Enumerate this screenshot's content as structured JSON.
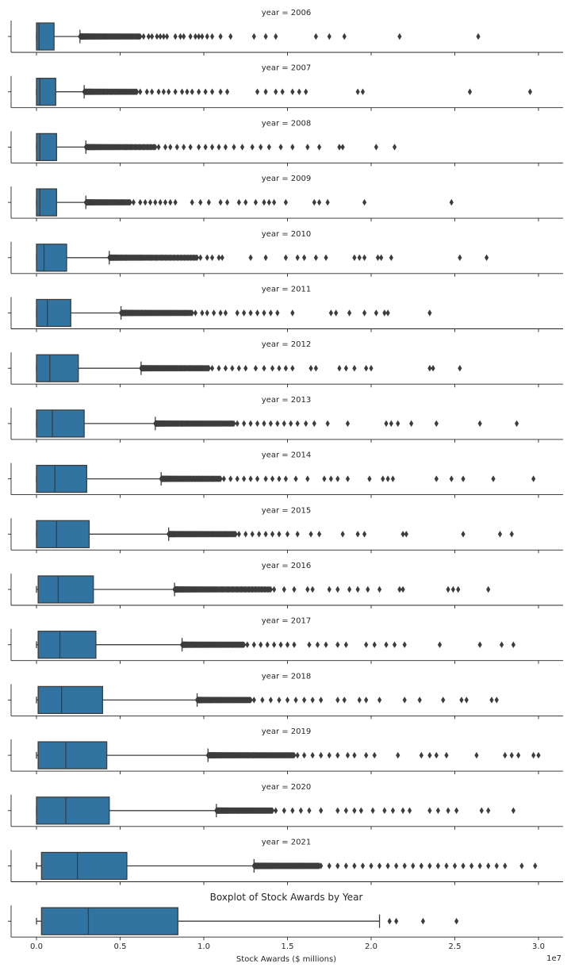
{
  "chart_data": {
    "type": "boxplot",
    "title": "Boxplot of Stock Awards by Year",
    "xlabel": "Stock Awards ($ millions)",
    "x_offset_label": "1e7",
    "xlim": [
      -1500000,
      31500000
    ],
    "x_ticks": [
      0,
      5000000,
      10000000,
      15000000,
      20000000,
      25000000,
      30000000
    ],
    "x_tick_labels": [
      "0.0",
      "0.5",
      "1.0",
      "1.5",
      "2.0",
      "2.5",
      "3.0"
    ],
    "facet_label_prefix": "year = ",
    "box_color": "#3274a1",
    "line_color": "#3d3d3d",
    "panels": [
      {
        "label": "year = 2006",
        "min": 0,
        "q1": 0,
        "median": 150000,
        "q3": 1050000,
        "whisker_high": 2600000,
        "outliers": [
          6400000,
          6700000,
          6900000,
          7200000,
          7400000,
          7600000,
          7800000,
          8300000,
          8600000,
          8800000,
          9200000,
          9500000,
          9700000,
          9900000,
          10200000,
          10500000,
          11000000,
          11600000,
          13000000,
          13700000,
          14300000,
          16700000,
          17500000,
          18400000,
          21700000,
          26400000
        ],
        "outlier_cluster": [
          2600000,
          6200000,
          90
        ]
      },
      {
        "label": "year = 2007",
        "min": 0,
        "q1": 0,
        "median": 200000,
        "q3": 1150000,
        "whisker_high": 2850000,
        "outliers": [
          6200000,
          6600000,
          6900000,
          7300000,
          7600000,
          7900000,
          8300000,
          8700000,
          9000000,
          9300000,
          9700000,
          10100000,
          10500000,
          11000000,
          11400000,
          13200000,
          13700000,
          14300000,
          14700000,
          15300000,
          15700000,
          16100000,
          19200000,
          19500000,
          25900000,
          29500000
        ],
        "outlier_cluster": [
          2850000,
          6000000,
          90
        ]
      },
      {
        "label": "year = 2008",
        "min": 0,
        "q1": 0,
        "median": 200000,
        "q3": 1200000,
        "whisker_high": 2950000,
        "outliers": [
          7300000,
          7700000,
          8000000,
          8400000,
          8800000,
          9200000,
          9700000,
          10100000,
          10500000,
          10900000,
          11300000,
          11800000,
          12300000,
          12900000,
          13400000,
          13900000,
          14600000,
          15300000,
          16200000,
          16900000,
          18100000,
          18300000,
          20300000,
          21400000
        ],
        "outlier_cluster": [
          2950000,
          7100000,
          90
        ]
      },
      {
        "label": "year = 2009",
        "min": 0,
        "q1": 0,
        "median": 200000,
        "q3": 1200000,
        "whisker_high": 2950000,
        "outliers": [
          5800000,
          6200000,
          6500000,
          6800000,
          7100000,
          7400000,
          7700000,
          8000000,
          8300000,
          9300000,
          9800000,
          10300000,
          11000000,
          11400000,
          12100000,
          12500000,
          13100000,
          13600000,
          13900000,
          14200000,
          14900000,
          16600000,
          16900000,
          17400000,
          19600000,
          24800000
        ],
        "outlier_cluster": [
          2950000,
          5600000,
          80
        ]
      },
      {
        "label": "year = 2010",
        "min": 0,
        "q1": 0,
        "median": 450000,
        "q3": 1800000,
        "whisker_high": 4350000,
        "outliers": [
          9800000,
          10200000,
          10500000,
          10900000,
          11100000,
          12800000,
          13700000,
          14900000,
          15600000,
          16000000,
          16700000,
          17300000,
          19000000,
          19300000,
          19600000,
          20400000,
          20600000,
          21200000,
          25300000,
          26900000
        ],
        "outlier_cluster": [
          4350000,
          9600000,
          110
        ]
      },
      {
        "label": "year = 2011",
        "min": 0,
        "q1": 0,
        "median": 650000,
        "q3": 2050000,
        "whisker_high": 5050000,
        "outliers": [
          9500000,
          9900000,
          10200000,
          10600000,
          11000000,
          11300000,
          12000000,
          12400000,
          12800000,
          13200000,
          13600000,
          14000000,
          14400000,
          15300000,
          17600000,
          17900000,
          18700000,
          19600000,
          20300000,
          20800000,
          21000000,
          23500000
        ],
        "outlier_cluster": [
          5050000,
          9300000,
          110
        ]
      },
      {
        "label": "year = 2012",
        "min": 0,
        "q1": 0,
        "median": 800000,
        "q3": 2500000,
        "whisker_high": 6250000,
        "outliers": [
          10500000,
          10900000,
          11300000,
          11700000,
          12100000,
          12500000,
          13100000,
          13600000,
          14100000,
          14500000,
          14900000,
          15300000,
          16400000,
          16700000,
          18100000,
          18500000,
          19000000,
          19700000,
          20000000,
          23500000,
          23700000,
          25300000
        ],
        "outlier_cluster": [
          6250000,
          10300000,
          120
        ]
      },
      {
        "label": "year = 2013",
        "min": 0,
        "q1": 0,
        "median": 950000,
        "q3": 2850000,
        "whisker_high": 7100000,
        "outliers": [
          12000000,
          12400000,
          12800000,
          13200000,
          13600000,
          14000000,
          14400000,
          14800000,
          15200000,
          15600000,
          16100000,
          16600000,
          17400000,
          18600000,
          20900000,
          21200000,
          21600000,
          22400000,
          23900000,
          26500000,
          28700000
        ],
        "outlier_cluster": [
          7100000,
          11800000,
          120
        ]
      },
      {
        "label": "year = 2014",
        "min": 0,
        "q1": 0,
        "median": 1100000,
        "q3": 3000000,
        "whisker_high": 7450000,
        "outliers": [
          11200000,
          11600000,
          12000000,
          12400000,
          12800000,
          13200000,
          13700000,
          14100000,
          14500000,
          14900000,
          15500000,
          16200000,
          17200000,
          17600000,
          18000000,
          18600000,
          19900000,
          20700000,
          21000000,
          21300000,
          23900000,
          24800000,
          25500000,
          27300000,
          29700000
        ],
        "outlier_cluster": [
          7450000,
          11000000,
          110
        ]
      },
      {
        "label": "year = 2015",
        "min": 0,
        "q1": 0,
        "median": 1200000,
        "q3": 3150000,
        "whisker_high": 7900000,
        "outliers": [
          12100000,
          12500000,
          12900000,
          13300000,
          13700000,
          14100000,
          14500000,
          15000000,
          15600000,
          16400000,
          16900000,
          18300000,
          19200000,
          19600000,
          21900000,
          22100000,
          25500000,
          27700000,
          28400000
        ],
        "outlier_cluster": [
          7900000,
          11900000,
          120
        ]
      },
      {
        "label": "year = 2016",
        "min": 0,
        "q1": 100000,
        "median": 1300000,
        "q3": 3400000,
        "whisker_high": 8250000,
        "outliers": [
          14200000,
          14800000,
          15400000,
          16200000,
          16500000,
          17500000,
          18000000,
          18700000,
          19200000,
          19800000,
          20500000,
          21700000,
          21900000,
          24600000,
          24900000,
          25200000,
          27000000
        ],
        "outlier_cluster": [
          8250000,
          14000000,
          120
        ]
      },
      {
        "label": "year = 2017",
        "min": 0,
        "q1": 100000,
        "median": 1400000,
        "q3": 3550000,
        "whisker_high": 8700000,
        "outliers": [
          12600000,
          13000000,
          13400000,
          13800000,
          14200000,
          14600000,
          15000000,
          15400000,
          16300000,
          16800000,
          17300000,
          18000000,
          18500000,
          19700000,
          20200000,
          20900000,
          21400000,
          22000000,
          24100000,
          26500000,
          27800000,
          28500000
        ],
        "outlier_cluster": [
          8700000,
          12400000,
          120
        ]
      },
      {
        "label": "year = 2018",
        "min": 0,
        "q1": 100000,
        "median": 1500000,
        "q3": 3950000,
        "whisker_high": 9600000,
        "outliers": [
          13000000,
          13500000,
          14000000,
          14500000,
          15000000,
          15500000,
          16000000,
          16500000,
          17000000,
          18000000,
          18400000,
          19300000,
          19700000,
          20500000,
          22000000,
          22900000,
          24300000,
          25400000,
          25700000,
          27200000,
          27500000
        ],
        "outlier_cluster": [
          9600000,
          12800000,
          130
        ]
      },
      {
        "label": "year = 2019",
        "min": 0,
        "q1": 100000,
        "median": 1750000,
        "q3": 4200000,
        "whisker_high": 10250000,
        "outliers": [
          15600000,
          16000000,
          16500000,
          17000000,
          17500000,
          18000000,
          18600000,
          19000000,
          19700000,
          20200000,
          21600000,
          23000000,
          23500000,
          23900000,
          24500000,
          26300000,
          28000000,
          28400000,
          28800000,
          29700000,
          30000000
        ],
        "outlier_cluster": [
          10250000,
          15400000,
          140
        ]
      },
      {
        "label": "year = 2020",
        "min": 0,
        "q1": 0,
        "median": 1750000,
        "q3": 4350000,
        "whisker_high": 10750000,
        "outliers": [
          14300000,
          14800000,
          15300000,
          15800000,
          16300000,
          17000000,
          18000000,
          18500000,
          19000000,
          19400000,
          20100000,
          20800000,
          21300000,
          21900000,
          22300000,
          23500000,
          24000000,
          24600000,
          25100000,
          26600000,
          27000000,
          28500000
        ],
        "outlier_cluster": [
          10750000,
          14100000,
          140
        ]
      },
      {
        "label": "year = 2021",
        "min": 0,
        "q1": 300000,
        "median": 2450000,
        "q3": 5400000,
        "whisker_high": 13000000,
        "outliers": [
          17000000,
          17500000,
          18000000,
          18500000,
          19000000,
          19500000,
          20000000,
          20500000,
          21000000,
          21500000,
          22000000,
          22500000,
          23000000,
          23500000,
          24000000,
          24500000,
          25000000,
          25500000,
          26000000,
          26500000,
          27000000,
          27500000,
          28000000,
          29000000,
          29800000
        ],
        "outlier_cluster": [
          13000000,
          16900000,
          150
        ]
      },
      {
        "label": "",
        "min": 0,
        "q1": 300000,
        "median": 3100000,
        "q3": 8450000,
        "whisker_high": 20500000,
        "outliers": [
          21100000,
          21500000,
          23100000,
          25100000
        ],
        "outlier_cluster": []
      }
    ]
  }
}
